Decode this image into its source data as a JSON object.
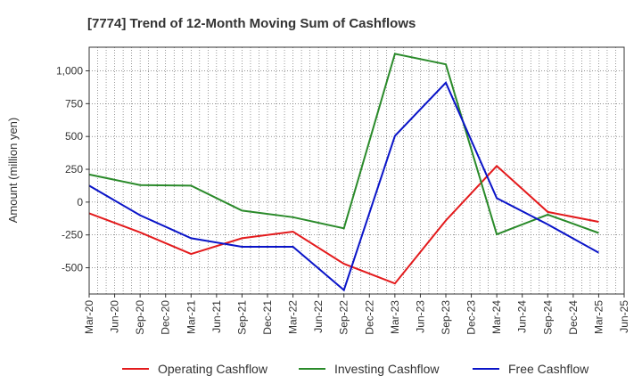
{
  "chart_data": {
    "type": "line",
    "title": "[7774]  Trend of 12-Month Moving Sum of Cashflows",
    "xlabel": "",
    "ylabel": "Amount (million yen)",
    "ylim": [
      -700,
      1180
    ],
    "y_ticks": [
      -500,
      -250,
      0,
      250,
      500,
      750,
      1000
    ],
    "y_tick_labels": [
      "-500",
      "-250",
      "0",
      "250",
      "500",
      "750",
      "1,000"
    ],
    "x_tick_labels": [
      "Mar-20",
      "Jun-20",
      "Sep-20",
      "Dec-20",
      "Mar-21",
      "Jun-21",
      "Sep-21",
      "Dec-21",
      "Mar-22",
      "Jun-22",
      "Sep-22",
      "Dec-22",
      "Mar-23",
      "Jun-23",
      "Sep-23",
      "Dec-23",
      "Mar-24",
      "Jun-24",
      "Sep-24",
      "Dec-24",
      "Mar-25",
      "Jun-25"
    ],
    "x": [
      "Mar-20",
      "Sep-20",
      "Mar-21",
      "Sep-21",
      "Mar-22",
      "Sep-22",
      "Mar-23",
      "Sep-23",
      "Mar-24",
      "Sep-24",
      "Mar-25"
    ],
    "grid": true,
    "legend_position": "bottom",
    "series": [
      {
        "name": "Operating Cashflow",
        "color": "#e31a1c",
        "values": [
          -85,
          -230,
          -395,
          -275,
          -225,
          -470,
          -620,
          -140,
          275,
          -75,
          -150
        ]
      },
      {
        "name": "Investing Cashflow",
        "color": "#2a8a2a",
        "values": [
          210,
          130,
          125,
          -65,
          -115,
          -200,
          1130,
          1050,
          -245,
          -95,
          -235
        ]
      },
      {
        "name": "Free Cashflow",
        "color": "#0a14c8",
        "values": [
          125,
          -100,
          -275,
          -340,
          -340,
          -670,
          505,
          910,
          30,
          -170,
          -385
        ]
      }
    ]
  }
}
